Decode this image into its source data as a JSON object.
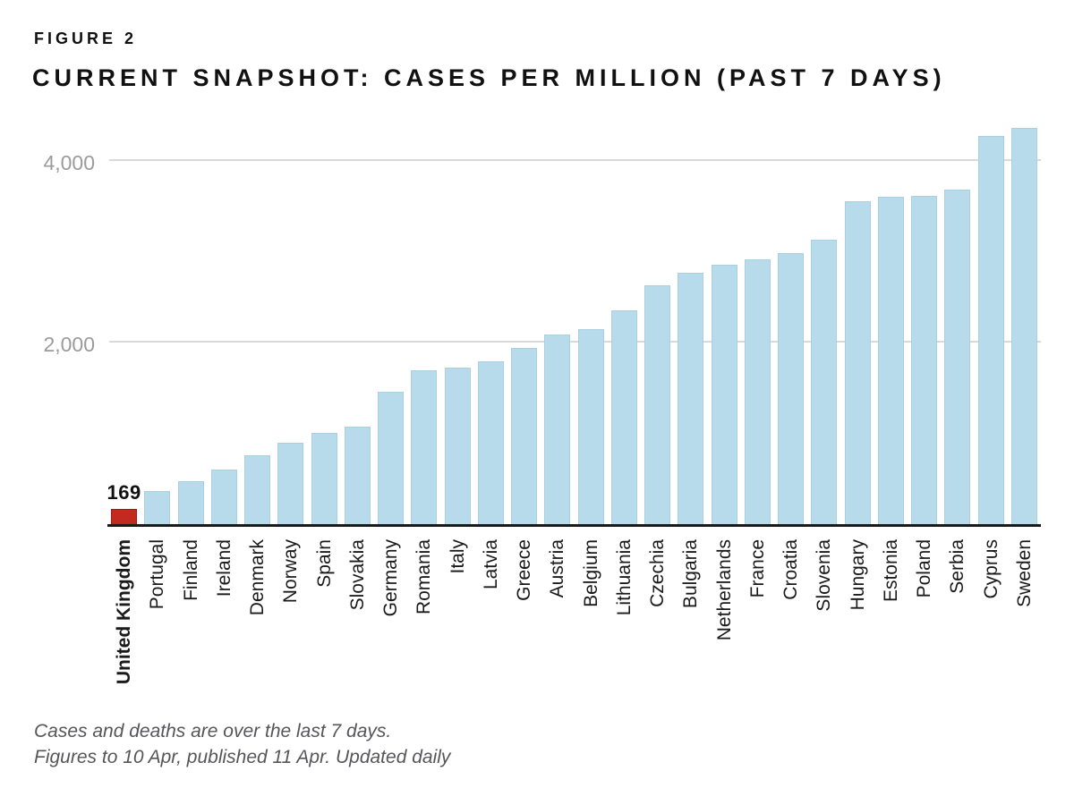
{
  "header": {
    "figure_label": "FIGURE 2",
    "title": "CURRENT SNAPSHOT: CASES PER MILLION (PAST 7 DAYS)"
  },
  "chart_data": {
    "type": "bar",
    "title": "CURRENT SNAPSHOT: CASES PER MILLION (PAST 7 DAYS)",
    "categories": [
      "United Kingdom",
      "Portugal",
      "Finland",
      "Ireland",
      "Denmark",
      "Norway",
      "Spain",
      "Slovakia",
      "Germany",
      "Romania",
      "Italy",
      "Latvia",
      "Greece",
      "Austria",
      "Belgium",
      "Lithuania",
      "Czechia",
      "Bulgaria",
      "Netherlands",
      "France",
      "Croatia",
      "Slovenia",
      "Hungary",
      "Estonia",
      "Poland",
      "Serbia",
      "Cyprus",
      "Sweden"
    ],
    "values": [
      169,
      365,
      475,
      600,
      760,
      895,
      1005,
      1075,
      1455,
      1690,
      1720,
      1790,
      1935,
      2085,
      2145,
      2350,
      2625,
      2760,
      2850,
      2910,
      2980,
      3125,
      3550,
      3600,
      3610,
      3675,
      4265,
      4355
    ],
    "highlight_index": 0,
    "annotation": {
      "index": 0,
      "text": "169"
    },
    "y_ticks": [
      {
        "value": 2000,
        "label": "2,000"
      },
      {
        "value": 4000,
        "label": "4,000"
      }
    ],
    "ylim": [
      0,
      4500
    ],
    "xlabel": "",
    "ylabel": "",
    "grid": "horizontal",
    "legend": "none",
    "category_label_rotation": -90,
    "colors": {
      "bar": "#b8dbeb",
      "bar_edge": "#a8cfe2",
      "highlight_bar": "#c32a1f",
      "highlight_bar_edge": "#9c1d12",
      "axis_line": "#1a1a1a",
      "gridline": "#d9d9d9",
      "tick_label": "#9b9b9b",
      "category_label": "#1a1a1a",
      "annotation_label": "#111111"
    }
  },
  "footnotes": [
    "Cases and deaths are over the last 7 days.",
    "Figures to 10 Apr, published 11 Apr. Updated daily"
  ]
}
